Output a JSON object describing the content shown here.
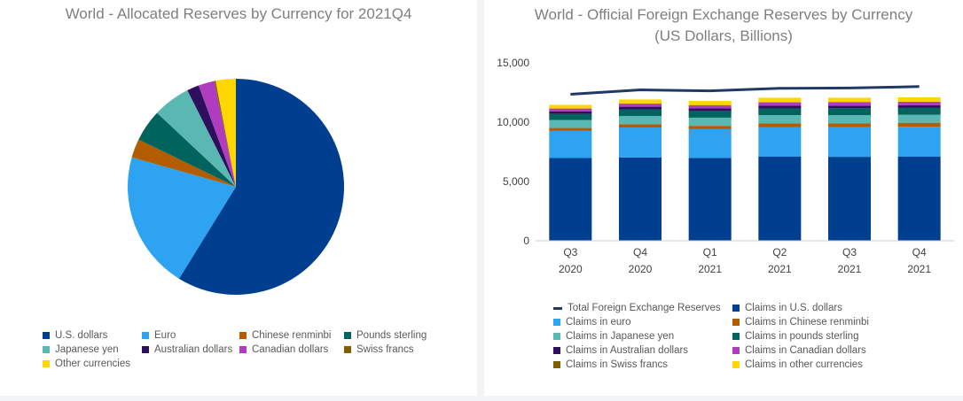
{
  "colors": {
    "usd": "#003f8f",
    "eur": "#2ea3f2",
    "cny": "#b35c00",
    "gbp": "#00635e",
    "jpy": "#5ab8b3",
    "aud": "#2d0f5e",
    "cad": "#b03dbf",
    "chf": "#7f6000",
    "other": "#ffd700",
    "total": "#1f3a64"
  },
  "chart_data": [
    {
      "type": "pie",
      "title": "World - Allocated Reserves by Currency for 2021Q4",
      "labels": [
        "U.S. dollars",
        "Euro",
        "Chinese renminbi",
        "Pounds sterling",
        "Japanese yen",
        "Australian dollars",
        "Canadian dollars",
        "Swiss francs",
        "Other currencies"
      ],
      "values": [
        58.8,
        20.6,
        2.8,
        4.8,
        5.6,
        1.8,
        2.4,
        0.2,
        3.0
      ],
      "legend_position": "bottom"
    },
    {
      "type": "bar",
      "stacked": true,
      "title_line1": "World - Official Foreign Exchange Reserves by Currency",
      "title_line2": "(US Dollars, Billions)",
      "categories": [
        "Q3",
        "Q4",
        "Q1",
        "Q2",
        "Q3",
        "Q4"
      ],
      "years": [
        "2020",
        "2020",
        "2021",
        "2021",
        "2021",
        "2021"
      ],
      "ylim": [
        0,
        15000
      ],
      "yticks": [
        0,
        5000,
        10000,
        15000
      ],
      "ytick_labels": [
        "0",
        "5,000",
        "10,000",
        "15,000"
      ],
      "series": [
        {
          "name": "Claims in U.S. dollars",
          "key": "usd",
          "values": [
            6980,
            7030,
            6990,
            7090,
            7080,
            7090
          ]
        },
        {
          "name": "Claims in euro",
          "key": "eur",
          "values": [
            2280,
            2520,
            2420,
            2500,
            2500,
            2520
          ]
        },
        {
          "name": "Claims in Chinese renminbi",
          "key": "cny",
          "values": [
            250,
            270,
            280,
            310,
            320,
            340
          ]
        },
        {
          "name": "Claims in Japanese yen",
          "key": "jpy",
          "values": [
            670,
            700,
            690,
            690,
            690,
            670
          ]
        },
        {
          "name": "Claims in pounds sterling",
          "key": "gbp",
          "values": [
            520,
            560,
            560,
            570,
            580,
            580
          ]
        },
        {
          "name": "Claims in Australian dollars",
          "key": "aud",
          "values": [
            200,
            220,
            220,
            220,
            220,
            220
          ]
        },
        {
          "name": "Claims in Canadian dollars",
          "key": "cad",
          "values": [
            240,
            260,
            260,
            290,
            290,
            290
          ]
        },
        {
          "name": "Claims in Swiss francs",
          "key": "chf",
          "values": [
            20,
            20,
            20,
            20,
            20,
            20
          ]
        },
        {
          "name": "Claims in other currencies",
          "key": "other",
          "values": [
            300,
            330,
            350,
            370,
            360,
            360
          ]
        }
      ],
      "line_series": {
        "name": "Total Foreign Exchange Reserves",
        "key": "total",
        "values": [
          12350,
          12720,
          12640,
          12850,
          12880,
          13000
        ]
      },
      "legend_position": "bottom"
    }
  ]
}
